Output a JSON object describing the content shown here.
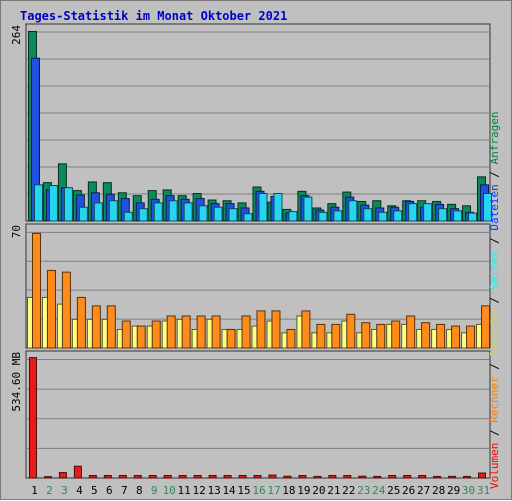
{
  "title": "Tages-Statistik im Monat Oktober 2021",
  "legend": {
    "items": [
      {
        "label": "Volumen",
        "color": "#ff0000"
      },
      {
        "label": "Rechner",
        "color": "#ff8000"
      },
      {
        "label": "Besuche",
        "color": "#ffff80"
      },
      {
        "label": "Seiten",
        "color": "#00ffff"
      },
      {
        "label": "Dateien",
        "color": "#0040ff"
      },
      {
        "label": "Anfragen",
        "color": "#008040"
      }
    ],
    "separator": " / "
  },
  "chart_data": [
    {
      "type": "bar",
      "name": "panel-top",
      "ymax_label": "264",
      "ylim": [
        0,
        264
      ],
      "categories": [
        "1",
        "2",
        "3",
        "4",
        "5",
        "6",
        "7",
        "8",
        "9",
        "10",
        "11",
        "12",
        "13",
        "14",
        "15",
        "16",
        "17",
        "18",
        "19",
        "20",
        "21",
        "22",
        "23",
        "24",
        "25",
        "26",
        "27",
        "28",
        "29",
        "30",
        "31"
      ],
      "weekend_days": [
        2,
        3,
        9,
        10,
        16,
        17,
        23,
        24,
        30,
        31
      ],
      "series": [
        {
          "name": "Anfragen",
          "color": "#0b8a5a",
          "values": [
            262,
            53,
            79,
            42,
            54,
            53,
            39,
            35,
            42,
            43,
            35,
            38,
            29,
            28,
            25,
            47,
            26,
            16,
            41,
            18,
            24,
            40,
            27,
            28,
            21,
            28,
            28,
            27,
            23,
            21,
            61
          ]
        },
        {
          "name": "Dateien",
          "color": "#1f52e0",
          "values": [
            225,
            43,
            46,
            36,
            39,
            37,
            31,
            25,
            30,
            35,
            30,
            31,
            24,
            24,
            18,
            41,
            34,
            11,
            35,
            15,
            19,
            33,
            22,
            18,
            19,
            27,
            19,
            23,
            17,
            12,
            50
          ]
        },
        {
          "name": "Seiten",
          "color": "#26d6f0",
          "values": [
            50,
            49,
            46,
            19,
            25,
            28,
            12,
            17,
            25,
            28,
            25,
            21,
            19,
            17,
            10,
            38,
            38,
            13,
            33,
            12,
            14,
            28,
            17,
            12,
            14,
            24,
            24,
            17,
            14,
            11,
            38
          ]
        }
      ]
    },
    {
      "type": "bar",
      "name": "panel-middle",
      "ymax_label": "70",
      "ylim": [
        0,
        70
      ],
      "categories": [
        "1",
        "2",
        "3",
        "4",
        "5",
        "6",
        "7",
        "8",
        "9",
        "10",
        "11",
        "12",
        "13",
        "14",
        "15",
        "16",
        "17",
        "18",
        "19",
        "20",
        "21",
        "22",
        "23",
        "24",
        "25",
        "26",
        "27",
        "28",
        "29",
        "30",
        "31"
      ],
      "series": [
        {
          "name": "Besuche",
          "color": "#ffff80",
          "values": [
            30,
            30,
            26,
            17,
            17,
            17,
            11,
            13,
            13,
            16,
            17,
            11,
            17,
            11,
            11,
            13,
            16,
            9,
            19,
            9,
            9,
            16,
            9,
            11,
            14,
            14,
            11,
            11,
            11,
            9,
            14
          ]
        },
        {
          "name": "Rechner",
          "color": "#ff8c1a",
          "values": [
            68,
            46,
            45,
            30,
            25,
            25,
            16,
            13,
            16,
            19,
            19,
            19,
            19,
            11,
            19,
            22,
            22,
            11,
            22,
            14,
            14,
            20,
            15,
            14,
            16,
            19,
            15,
            14,
            13,
            13,
            25
          ]
        }
      ]
    },
    {
      "type": "bar",
      "name": "panel-bottom",
      "ymax_label": "534.60 MB",
      "ylim": [
        0,
        534.6
      ],
      "categories": [
        "1",
        "2",
        "3",
        "4",
        "5",
        "6",
        "7",
        "8",
        "9",
        "10",
        "11",
        "12",
        "13",
        "14",
        "15",
        "16",
        "17",
        "18",
        "19",
        "20",
        "21",
        "22",
        "23",
        "24",
        "25",
        "26",
        "27",
        "28",
        "29",
        "30",
        "31"
      ],
      "series": [
        {
          "name": "Volumen",
          "color": "#e51c1c",
          "values": [
            532,
            6,
            24,
            52,
            11,
            11,
            11,
            11,
            11,
            11,
            11,
            11,
            11,
            11,
            11,
            11,
            13,
            8,
            11,
            7,
            11,
            11,
            8,
            7,
            11,
            11,
            11,
            7,
            7,
            7,
            22
          ]
        }
      ]
    }
  ]
}
